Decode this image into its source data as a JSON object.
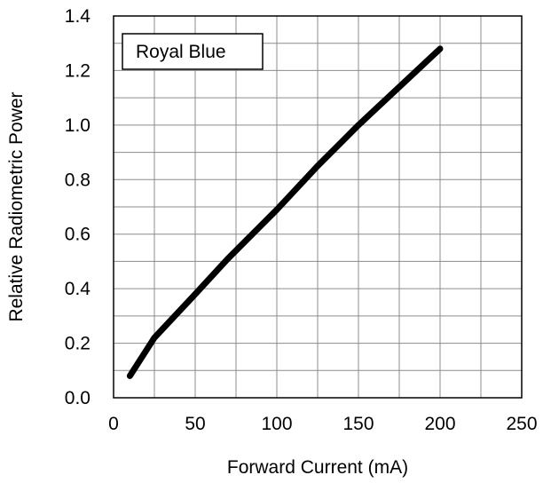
{
  "chart_data": {
    "type": "line",
    "xlabel": "Forward Current (mA)",
    "ylabel": "Relative Radiometric Power",
    "xlim": [
      0,
      250
    ],
    "ylim": [
      0,
      1.4
    ],
    "x_ticks": [
      "0",
      "50",
      "100",
      "150",
      "200",
      "250"
    ],
    "y_ticks": [
      "0.0",
      "0.2",
      "0.4",
      "0.6",
      "0.8",
      "1.0",
      "1.2",
      "1.4"
    ],
    "x_minor_step": 25,
    "y_minor_step": 0.1,
    "grid": true,
    "legend_position": "top-left",
    "series": [
      {
        "name": "Royal Blue",
        "color": "#000000",
        "x": [
          10,
          25,
          50,
          70,
          100,
          125,
          150,
          175,
          200
        ],
        "y": [
          0.08,
          0.22,
          0.38,
          0.51,
          0.69,
          0.85,
          1.0,
          1.14,
          1.28
        ]
      }
    ]
  }
}
